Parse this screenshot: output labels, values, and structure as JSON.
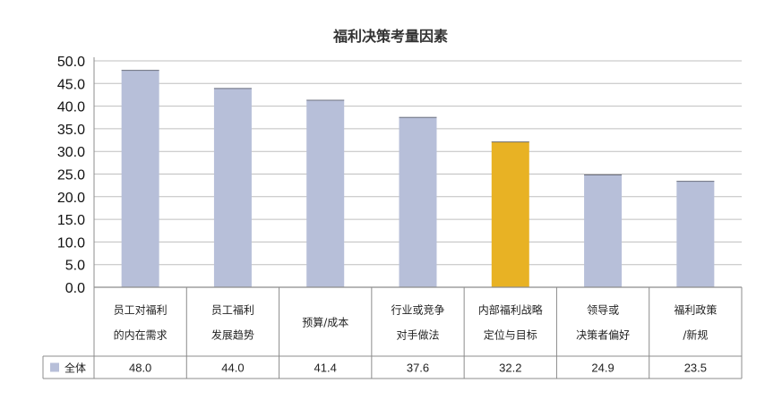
{
  "chart_data": {
    "type": "bar",
    "title": "福利决策考量因素",
    "categories": [
      [
        "员工对福利",
        "的内在需求"
      ],
      [
        "员工福利",
        "发展趋势"
      ],
      [
        "预算/成本"
      ],
      [
        "行业或竞争",
        "对手做法"
      ],
      [
        "内部福利战略",
        "定位与目标"
      ],
      [
        "领导或",
        "决策者偏好"
      ],
      [
        "福利政策",
        "/新规"
      ]
    ],
    "series": [
      {
        "name": "全体",
        "values": [
          48.0,
          44.0,
          41.4,
          37.6,
          32.2,
          24.9,
          23.5
        ],
        "value_labels": [
          "48.0",
          "44.0",
          "41.4",
          "37.6",
          "32.2",
          "24.9",
          "23.5"
        ]
      }
    ],
    "ylim": [
      0,
      50
    ],
    "yticks": [
      "0.0",
      "5.0",
      "10.0",
      "15.0",
      "20.0",
      "25.0",
      "30.0",
      "35.0",
      "40.0",
      "45.0",
      "50.0"
    ],
    "grid": true,
    "legend": "bottom-left table row",
    "colors": {
      "bar": "#b7bfd9",
      "highlight": "#e8b224",
      "grid": "#bfbfbf",
      "border": "#8c8c8c"
    },
    "highlight_index": 4
  }
}
